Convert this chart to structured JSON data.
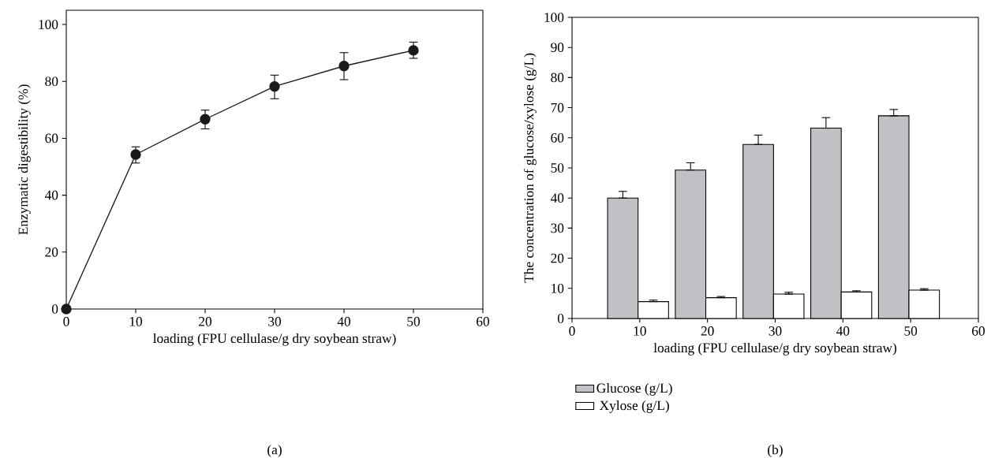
{
  "chart_data": [
    {
      "type": "line",
      "xlabel": "loading (FPU cellulase/g dry soybean straw)",
      "ylabel": "Enzymatic digestibility (%)",
      "annotations": [
        "(a)"
      ],
      "x": [
        0,
        10,
        20,
        30,
        40,
        50
      ],
      "xlim": [
        0,
        60
      ],
      "xticks": [
        0,
        10,
        20,
        30,
        40,
        50,
        60
      ],
      "ylim": [
        0,
        105
      ],
      "yticks": [
        0,
        20,
        40,
        60,
        80,
        100
      ],
      "marker": "circle",
      "line_style": "solid",
      "series": [
        {
          "color": "#1a1a1a",
          "values": [
            0,
            54.3,
            66.7,
            78.2,
            85.4,
            90.9
          ],
          "errors": [
            null,
            [
              51.3,
              57.0
            ],
            [
              63.3,
              69.9
            ],
            [
              73.9,
              82.2
            ],
            [
              80.6,
              90.1
            ],
            [
              88.1,
              93.8
            ]
          ]
        }
      ]
    },
    {
      "type": "bar",
      "xlabel": "loading (FPU cellulase/g dry soybean straw)",
      "ylabel": "The concentration of glucose/xylose (g/L)",
      "annotations": [
        "(b)"
      ],
      "xlim": [
        0,
        60
      ],
      "xticks": [
        0,
        10,
        20,
        30,
        40,
        50,
        60
      ],
      "ylim": [
        0,
        100
      ],
      "yticks": [
        0,
        10,
        20,
        30,
        40,
        50,
        60,
        70,
        80,
        90,
        100
      ],
      "legend": "bottom left",
      "series": [
        {
          "name": "Glucose (g/L)",
          "color": "#c0c1c4",
          "x": [
            7.5,
            17.5,
            27.5,
            37.5,
            47.5
          ],
          "values": [
            40.0,
            49.3,
            57.8,
            63.2,
            67.3
          ],
          "errors": [
            [
              40.0,
              42.2
            ],
            [
              49.3,
              51.7
            ],
            [
              57.8,
              60.9
            ],
            [
              63.2,
              66.7
            ],
            [
              67.3,
              69.4
            ]
          ]
        },
        {
          "name": "Xylose (g/L)",
          "color": "#ffffff",
          "x": [
            12,
            22,
            32,
            42,
            52
          ],
          "values": [
            5.6,
            6.9,
            8.1,
            8.8,
            9.4
          ],
          "errors": [
            [
              5.6,
              6.1
            ],
            [
              6.9,
              7.3
            ],
            [
              8.1,
              8.7
            ],
            [
              8.8,
              9.2
            ],
            [
              9.4,
              9.9
            ]
          ]
        }
      ]
    }
  ]
}
